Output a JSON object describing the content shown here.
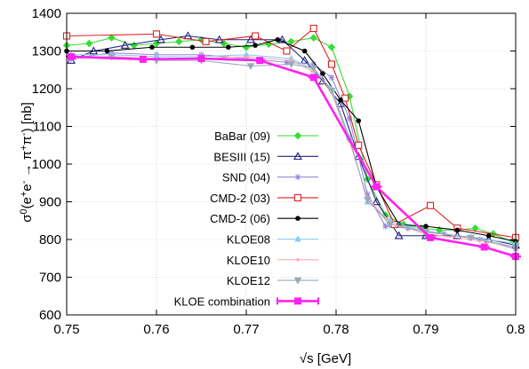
{
  "chart_data": {
    "type": "line",
    "xlabel": "√s [GeV]",
    "ylabel_main": "σ0(e+e- → π+π-) [nb]",
    "xlim": [
      0.75,
      0.8
    ],
    "ylim": [
      600,
      1400
    ],
    "x_ticks": [
      "0.75",
      "0.76",
      "0.77",
      "0.78",
      "0.79",
      "0.8"
    ],
    "y_ticks": [
      "600",
      "700",
      "800",
      "900",
      "1000",
      "1100",
      "1200",
      "1300",
      "1400"
    ],
    "grid": true,
    "legend_position": "center-right",
    "series": [
      {
        "name": "BaBar (09)",
        "color": "#33dd33",
        "marker": "diamond",
        "x": [
          0.75,
          0.7525,
          0.755,
          0.7575,
          0.76,
          0.7625,
          0.765,
          0.7675,
          0.77,
          0.7725,
          0.775,
          0.7775,
          0.7795,
          0.7815,
          0.7835,
          0.7855,
          0.7875,
          0.7895,
          0.7915,
          0.7935,
          0.7955,
          0.7975,
          0.8
        ],
        "y": [
          1315,
          1320,
          1335,
          1315,
          1320,
          1325,
          1330,
          1320,
          1310,
          1318,
          1325,
          1335,
          1310,
          1180,
          960,
          865,
          840,
          830,
          825,
          825,
          830,
          815,
          790
        ]
      },
      {
        "name": "BESIII (15)",
        "color": "#202080",
        "marker": "triangle",
        "x": [
          0.7505,
          0.753,
          0.7565,
          0.7605,
          0.7635,
          0.767,
          0.7705,
          0.774,
          0.7765,
          0.7785,
          0.7805,
          0.7825,
          0.7845,
          0.787,
          0.79,
          0.7935,
          0.797,
          0.8
        ],
        "y": [
          1275,
          1300,
          1315,
          1330,
          1340,
          1330,
          1330,
          1330,
          1275,
          1220,
          1160,
          1020,
          900,
          810,
          810,
          810,
          800,
          785
        ]
      },
      {
        "name": "SND (04)",
        "color": "#9988dd",
        "marker": "star",
        "x": [
          0.7505,
          0.755,
          0.76,
          0.765,
          0.77,
          0.7745,
          0.7775,
          0.7795,
          0.7815,
          0.7835,
          0.7855,
          0.788,
          0.792,
          0.796,
          0.8
        ],
        "y": [
          1280,
          1295,
          1290,
          1290,
          1280,
          1270,
          1265,
          1230,
          1120,
          920,
          835,
          830,
          815,
          800,
          775
        ]
      },
      {
        "name": "CMD-2 (03)",
        "color": "#dd2222",
        "marker": "square-open",
        "x": [
          0.75,
          0.76,
          0.7655,
          0.771,
          0.7745,
          0.7775,
          0.7795,
          0.781,
          0.7825,
          0.7845,
          0.7865,
          0.7905,
          0.7935,
          0.8
        ],
        "y": [
          1340,
          1345,
          1325,
          1340,
          1300,
          1360,
          1265,
          1175,
          1050,
          945,
          840,
          890,
          830,
          805
        ]
      },
      {
        "name": "CMD-2 (06)",
        "color": "#000000",
        "marker": "circle",
        "x": [
          0.75,
          0.7545,
          0.7595,
          0.764,
          0.768,
          0.771,
          0.7735,
          0.7765,
          0.7785,
          0.7805,
          0.7825,
          0.7845,
          0.787,
          0.79,
          0.7935,
          0.797,
          0.8
        ],
        "y": [
          1300,
          1300,
          1310,
          1310,
          1310,
          1315,
          1330,
          1300,
          1240,
          1170,
          1115,
          940,
          840,
          835,
          825,
          810,
          795
        ]
      },
      {
        "name": "KLOE08",
        "color": "#88ccee",
        "marker": "triangle-small",
        "x": [
          0.7505,
          0.755,
          0.76,
          0.765,
          0.77,
          0.775,
          0.7775,
          0.7795,
          0.7815,
          0.7835,
          0.786,
          0.79,
          0.795,
          0.8
        ],
        "y": [
          1290,
          1290,
          1285,
          1285,
          1290,
          1280,
          1250,
          1200,
          1070,
          900,
          850,
          820,
          805,
          790
        ]
      },
      {
        "name": "KLOE10",
        "color": "#ffaaaa",
        "marker": "dot",
        "x": [
          0.7505,
          0.755,
          0.76,
          0.765,
          0.77,
          0.775,
          0.7775,
          0.7795,
          0.7815,
          0.7835,
          0.786,
          0.79,
          0.795,
          0.8
        ],
        "y": [
          1285,
          1285,
          1280,
          1280,
          1285,
          1275,
          1245,
          1190,
          1060,
          910,
          845,
          815,
          800,
          780
        ]
      },
      {
        "name": "KLOE12",
        "color": "#99aabb",
        "marker": "triangle-down",
        "x": [
          0.7505,
          0.755,
          0.76,
          0.765,
          0.7705,
          0.775,
          0.7775,
          0.7795,
          0.7815,
          0.7835,
          0.786,
          0.79,
          0.795,
          0.8
        ],
        "y": [
          1280,
          1285,
          1275,
          1275,
          1260,
          1265,
          1255,
          1195,
          1065,
          905,
          840,
          820,
          805,
          780
        ]
      },
      {
        "name": "KLOE combination",
        "color": "#ff22ee",
        "marker": "square",
        "x": [
          0.7505,
          0.7585,
          0.765,
          0.7715,
          0.7775,
          0.7845,
          0.7905,
          0.7965,
          0.8
        ],
        "y": [
          1285,
          1278,
          1280,
          1275,
          1230,
          940,
          805,
          780,
          755
        ]
      }
    ]
  }
}
